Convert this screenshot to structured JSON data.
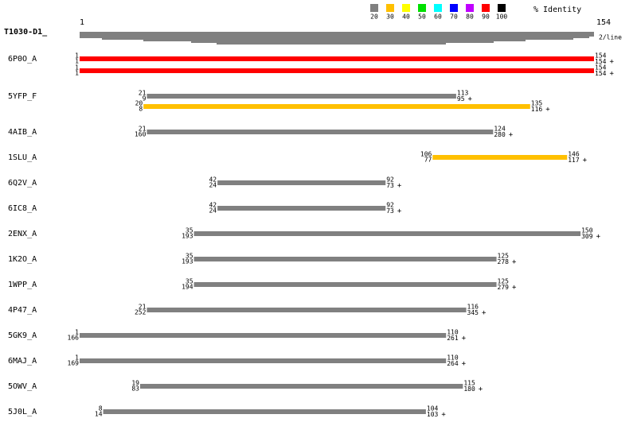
{
  "query": {
    "name": "T1030-D1_",
    "start": 1,
    "end": 154,
    "start_label": "1",
    "end_label": "154",
    "note": "2/line"
  },
  "legend": {
    "title": "% Identity",
    "items": [
      {
        "label": "20",
        "color": "#808080"
      },
      {
        "label": "30",
        "color": "#ffc000"
      },
      {
        "label": "40",
        "color": "#ffff00"
      },
      {
        "label": "50",
        "color": "#00e000"
      },
      {
        "label": "60",
        "color": "#00ffff"
      },
      {
        "label": "70",
        "color": "#0000ff"
      },
      {
        "label": "80",
        "color": "#c000ff"
      },
      {
        "label": "90",
        "color": "#ff0000"
      },
      {
        "label": "100",
        "color": "#000000"
      }
    ]
  },
  "hits": [
    {
      "name": "6P0O_A",
      "segments": [
        {
          "query_start": 1,
          "query_end": 154,
          "subject_start": 1,
          "subject_end": 154,
          "strand": "+",
          "color": "#ff0000"
        },
        {
          "query_start": 1,
          "query_end": 154,
          "subject_start": 1,
          "subject_end": 154,
          "strand": "+",
          "color": "#ff0000"
        }
      ]
    },
    {
      "name": "5YFP_F",
      "segments": [
        {
          "query_start": 21,
          "query_end": 113,
          "subject_start": 9,
          "subject_end": 95,
          "strand": "+",
          "color": "#808080"
        },
        {
          "query_start": 20,
          "query_end": 135,
          "subject_start": 8,
          "subject_end": 116,
          "strand": "+",
          "color": "#ffc000"
        }
      ]
    },
    {
      "name": "4AIB_A",
      "segments": [
        {
          "query_start": 21,
          "query_end": 124,
          "subject_start": 160,
          "subject_end": 280,
          "strand": "+",
          "color": "#808080"
        }
      ]
    },
    {
      "name": "1SLU_A",
      "segments": [
        {
          "query_start": 106,
          "query_end": 146,
          "subject_start": 77,
          "subject_end": 117,
          "strand": "+",
          "color": "#ffc000"
        }
      ]
    },
    {
      "name": "6Q2V_A",
      "segments": [
        {
          "query_start": 42,
          "query_end": 92,
          "subject_start": 24,
          "subject_end": 73,
          "strand": "+",
          "color": "#808080"
        }
      ]
    },
    {
      "name": "6IC8_A",
      "segments": [
        {
          "query_start": 42,
          "query_end": 92,
          "subject_start": 24,
          "subject_end": 73,
          "strand": "+",
          "color": "#808080"
        }
      ]
    },
    {
      "name": "2ENX_A",
      "segments": [
        {
          "query_start": 35,
          "query_end": 150,
          "subject_start": 193,
          "subject_end": 309,
          "strand": "+",
          "color": "#808080"
        }
      ]
    },
    {
      "name": "1K2O_A",
      "segments": [
        {
          "query_start": 35,
          "query_end": 125,
          "subject_start": 193,
          "subject_end": 278,
          "strand": "+",
          "color": "#808080"
        }
      ]
    },
    {
      "name": "1WPP_A",
      "segments": [
        {
          "query_start": 35,
          "query_end": 125,
          "subject_start": 194,
          "subject_end": 279,
          "strand": "+",
          "color": "#808080"
        }
      ]
    },
    {
      "name": "4P47_A",
      "segments": [
        {
          "query_start": 21,
          "query_end": 116,
          "subject_start": 252,
          "subject_end": 345,
          "strand": "+",
          "color": "#808080"
        }
      ]
    },
    {
      "name": "5GK9_A",
      "segments": [
        {
          "query_start": 1,
          "query_end": 110,
          "subject_start": 166,
          "subject_end": 261,
          "strand": "+",
          "color": "#808080"
        }
      ]
    },
    {
      "name": "6MAJ_A",
      "segments": [
        {
          "query_start": 1,
          "query_end": 110,
          "subject_start": 169,
          "subject_end": 264,
          "strand": "+",
          "color": "#808080"
        }
      ]
    },
    {
      "name": "5OWV_A",
      "segments": [
        {
          "query_start": 19,
          "query_end": 115,
          "subject_start": 83,
          "subject_end": 180,
          "strand": "+",
          "color": "#808080"
        }
      ]
    },
    {
      "name": "5J0L_A",
      "segments": [
        {
          "query_start": 8,
          "query_end": 104,
          "subject_start": 14,
          "subject_end": 103,
          "strand": "+",
          "color": "#808080"
        }
      ]
    }
  ]
}
